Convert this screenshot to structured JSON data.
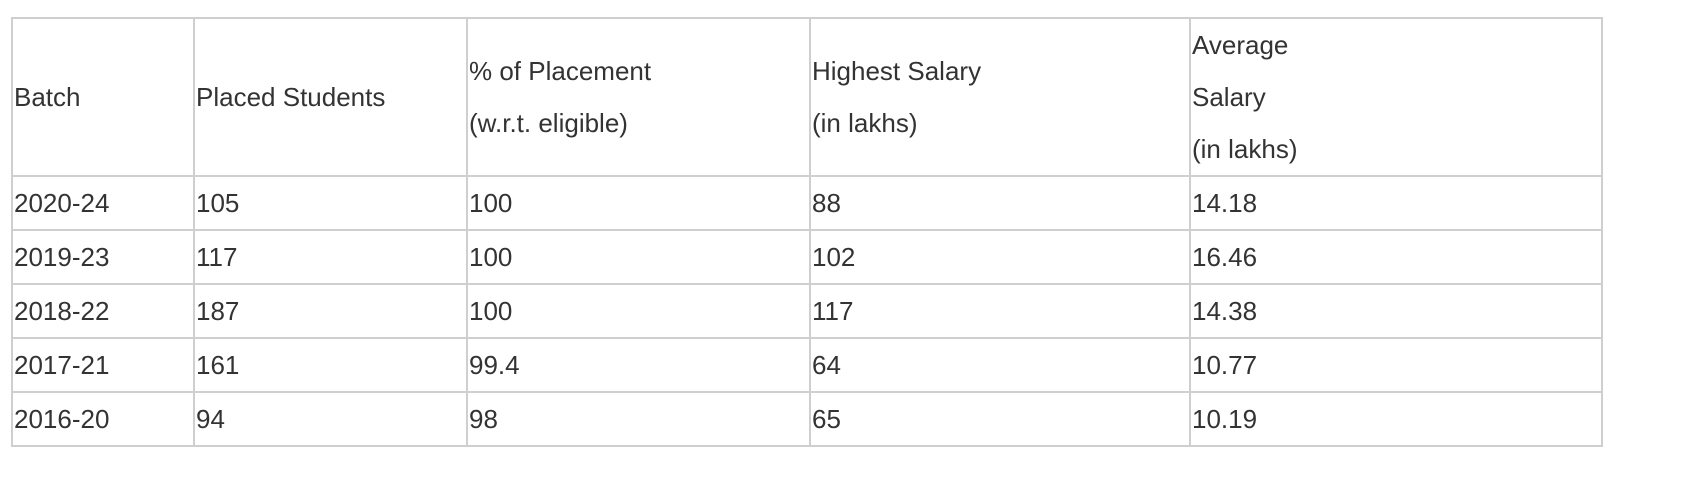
{
  "table": {
    "headers": [
      {
        "lines": [
          "Batch"
        ]
      },
      {
        "lines": [
          "Placed Students"
        ]
      },
      {
        "lines": [
          "% of Placement",
          "(w.r.t. eligible)"
        ]
      },
      {
        "lines": [
          "Highest Salary",
          "(in lakhs)"
        ]
      },
      {
        "lines": [
          "Average",
          "Salary",
          "(in lakhs)"
        ]
      }
    ],
    "rows": [
      [
        "2020-24",
        "105",
        "100",
        "88",
        "14.18"
      ],
      [
        "2019-23",
        "117",
        "100",
        "102",
        "16.46"
      ],
      [
        "2018-22",
        "187",
        "100",
        "117",
        "14.38"
      ],
      [
        "2017-21",
        "161",
        "99.4",
        "64",
        "10.77"
      ],
      [
        "2016-20",
        "94",
        "98",
        "65",
        "10.19"
      ]
    ]
  },
  "colors": {
    "border": "#cfcfcf",
    "text": "#333333",
    "background": "#ffffff"
  }
}
